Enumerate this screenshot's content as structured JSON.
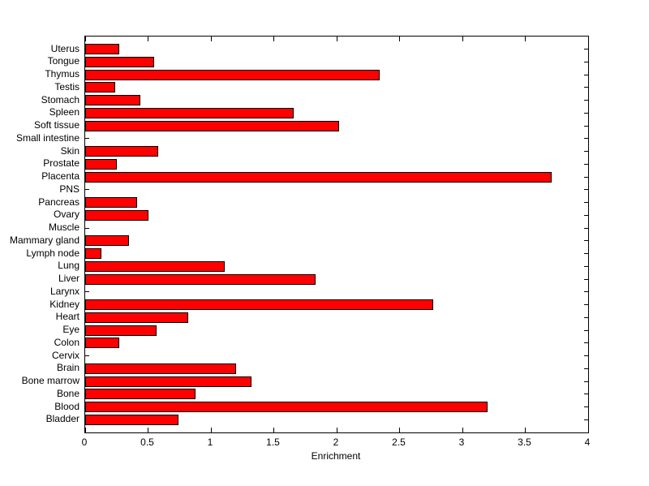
{
  "chart_data": {
    "type": "bar",
    "orientation": "horizontal",
    "title": "",
    "xlabel": "Enrichment",
    "ylabel": "",
    "xlim": [
      0,
      4
    ],
    "xticks": [
      0,
      0.5,
      1,
      1.5,
      2,
      2.5,
      3,
      3.5,
      4
    ],
    "xtick_labels": [
      "0",
      "0.5",
      "1",
      "1.5",
      "2",
      "2.5",
      "3",
      "3.5",
      "4"
    ],
    "grid": false,
    "legend": null,
    "bar_color": "#FF0000",
    "bar_border_color": "#000000",
    "axis_color": "#000000",
    "background_color": "#FFFFFF",
    "categories_top_to_bottom": [
      "Uterus",
      "Tongue",
      "Thymus",
      "Testis",
      "Stomach",
      "Spleen",
      "Soft tissue",
      "Small intestine",
      "Skin",
      "Prostate",
      "Placenta",
      "PNS",
      "Pancreas",
      "Ovary",
      "Muscle",
      "Mammary gland",
      "Lymph node",
      "Lung",
      "Liver",
      "Larynx",
      "Kidney",
      "Heart",
      "Eye",
      "Colon",
      "Cervix",
      "Brain",
      "Bone marrow",
      "Bone",
      "Blood",
      "Bladder"
    ],
    "values": [
      0.27,
      0.55,
      2.34,
      0.24,
      0.44,
      1.66,
      2.02,
      0,
      0.58,
      0.25,
      3.71,
      0,
      0.41,
      0.5,
      0,
      0.35,
      0.13,
      1.11,
      1.83,
      0,
      2.77,
      0.82,
      0.57,
      0.27,
      0,
      1.2,
      1.32,
      0.88,
      3.2,
      0.74
    ]
  }
}
